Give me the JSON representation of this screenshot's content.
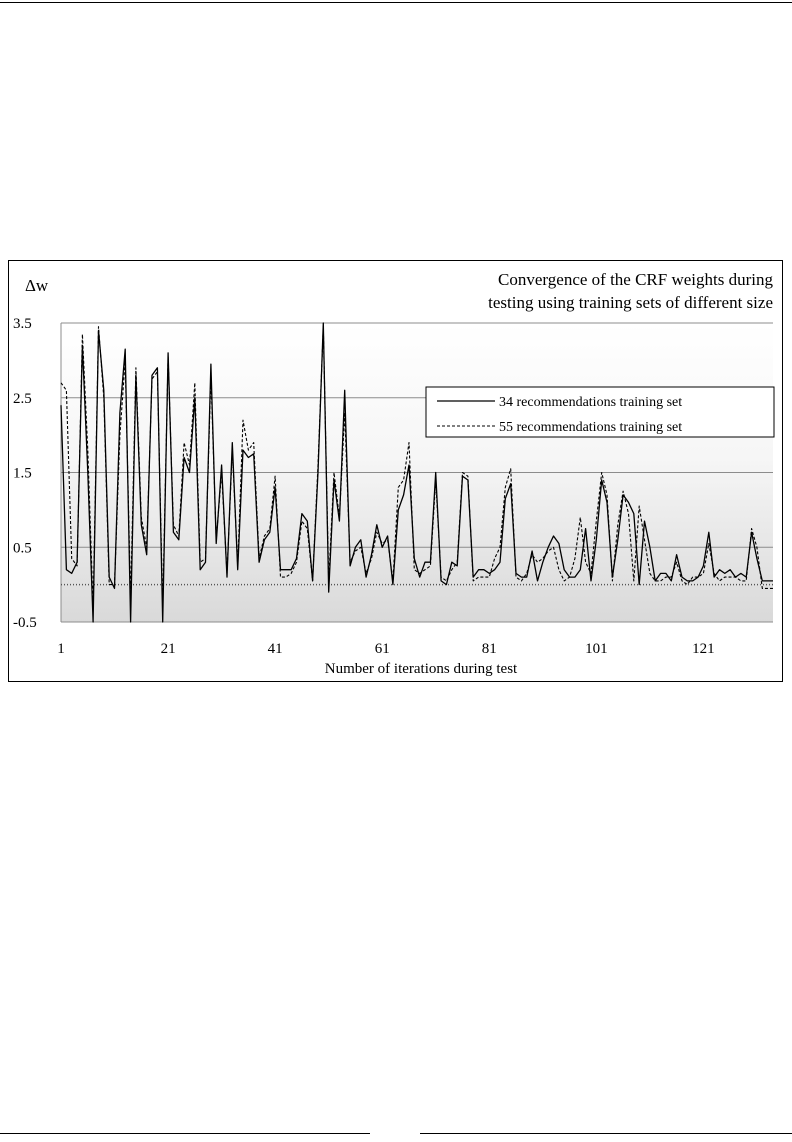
{
  "chart_data": {
    "type": "line",
    "title_lines": [
      "Convergence of the CRF weights during",
      "testing using training sets of different size"
    ],
    "ylabel": "Δw",
    "xlabel": "Number of iterations during test",
    "ylim": [
      -0.5,
      3.5
    ],
    "xlim": [
      1,
      134
    ],
    "yticks": [
      "3.5",
      "2.5",
      "1.5",
      "0.5",
      "-0.5"
    ],
    "ytick_values": [
      3.5,
      2.5,
      1.5,
      0.5,
      -0.5
    ],
    "xticks": [
      "1",
      "21",
      "41",
      "61",
      "81",
      "101",
      "121"
    ],
    "xtick_values": [
      1,
      21,
      41,
      61,
      81,
      101,
      121
    ],
    "zero_line": 0,
    "legend_position": "right",
    "series": [
      {
        "name": "34 recommendations training set",
        "style": "solid",
        "color": "#000000",
        "values": [
          2.4,
          0.2,
          0.15,
          0.3,
          3.2,
          1.5,
          -0.5,
          3.4,
          2.6,
          0.1,
          -0.05,
          2.3,
          3.15,
          -0.5,
          2.8,
          0.8,
          0.4,
          2.8,
          2.9,
          -0.5,
          3.1,
          0.7,
          0.6,
          1.7,
          1.5,
          2.5,
          0.2,
          0.3,
          2.95,
          0.55,
          1.6,
          0.1,
          1.9,
          0.2,
          1.8,
          1.7,
          1.75,
          0.3,
          0.6,
          0.7,
          1.3,
          0.2,
          0.2,
          0.2,
          0.35,
          0.95,
          0.85,
          0.05,
          1.5,
          3.5,
          -0.1,
          1.4,
          0.85,
          2.6,
          0.25,
          0.5,
          0.6,
          0.1,
          0.4,
          0.8,
          0.5,
          0.65,
          0.0,
          1.0,
          1.2,
          1.6,
          0.35,
          0.1,
          0.3,
          0.3,
          1.5,
          0.05,
          0.0,
          0.3,
          0.25,
          1.45,
          1.4,
          0.1,
          0.2,
          0.2,
          0.15,
          0.2,
          0.3,
          1.15,
          1.35,
          0.15,
          0.1,
          0.1,
          0.45,
          0.05,
          0.3,
          0.5,
          0.65,
          0.55,
          0.2,
          0.1,
          0.1,
          0.2,
          0.75,
          0.05,
          0.6,
          1.4,
          1.1,
          0.1,
          0.6,
          1.2,
          1.1,
          0.95,
          0.0,
          0.85,
          0.5,
          0.05,
          0.15,
          0.15,
          0.05,
          0.4,
          0.1,
          0.05,
          0.05,
          0.1,
          0.25,
          0.7,
          0.1,
          0.2,
          0.15,
          0.2,
          0.1,
          0.15,
          0.1,
          0.7,
          0.35,
          0.05,
          0.05,
          0.05
        ],
        "line_width": 1.3
      },
      {
        "name": "55 recommendations training set",
        "style": "dashed",
        "color": "#000000",
        "values": [
          2.7,
          2.6,
          0.35,
          0.25,
          3.35,
          1.8,
          -0.3,
          3.45,
          2.5,
          0.0,
          0.0,
          2.0,
          3.0,
          -0.2,
          2.9,
          0.9,
          0.5,
          2.75,
          2.85,
          -0.3,
          3.05,
          0.8,
          0.65,
          1.9,
          1.6,
          2.7,
          0.3,
          0.35,
          2.8,
          0.6,
          1.5,
          0.15,
          1.8,
          0.25,
          2.2,
          1.8,
          1.9,
          0.35,
          0.65,
          0.75,
          1.45,
          0.1,
          0.1,
          0.15,
          0.3,
          0.85,
          0.75,
          0.05,
          1.6,
          3.45,
          0.05,
          1.5,
          0.9,
          2.3,
          0.3,
          0.45,
          0.5,
          0.15,
          0.35,
          0.7,
          0.55,
          0.6,
          0.05,
          1.3,
          1.4,
          1.9,
          0.2,
          0.15,
          0.2,
          0.25,
          1.4,
          0.1,
          0.05,
          0.2,
          0.3,
          1.5,
          1.45,
          0.05,
          0.1,
          0.1,
          0.1,
          0.35,
          0.5,
          1.3,
          1.55,
          0.1,
          0.05,
          0.15,
          0.4,
          0.3,
          0.35,
          0.45,
          0.5,
          0.2,
          0.05,
          0.1,
          0.35,
          0.9,
          0.3,
          0.15,
          0.85,
          1.5,
          1.2,
          0.05,
          0.8,
          1.25,
          0.95,
          0.05,
          1.05,
          0.6,
          0.15,
          0.05,
          0.05,
          0.1,
          0.1,
          0.3,
          0.05,
          0.0,
          0.1,
          0.1,
          0.15,
          0.55,
          0.15,
          0.05,
          0.1,
          0.1,
          0.1,
          0.05,
          0.05,
          0.75,
          0.5,
          -0.05,
          -0.05,
          -0.05
        ],
        "line_width": 1.1
      }
    ]
  }
}
